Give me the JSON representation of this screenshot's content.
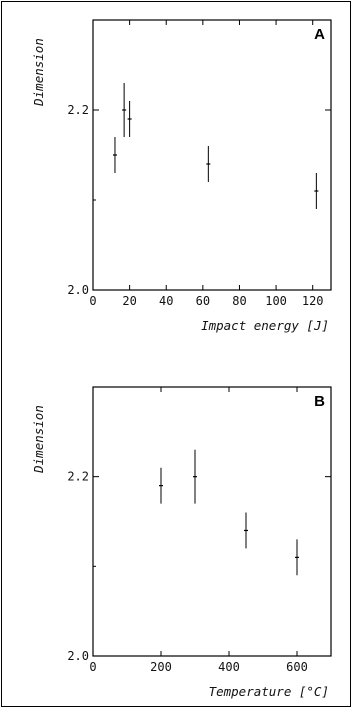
{
  "chart_data": [
    {
      "type": "scatter",
      "panel_label": "A",
      "xlabel": "Impact energy [J]",
      "ylabel": "Dimension",
      "xlim": [
        0,
        130
      ],
      "ylim": [
        2.0,
        2.3
      ],
      "x_ticks": [
        0,
        20,
        40,
        60,
        80,
        100,
        120
      ],
      "y_ticks": [
        2.0,
        2.2
      ],
      "y_tick_labels": [
        "2.0",
        "2.2"
      ],
      "x": [
        12,
        17,
        20,
        63,
        122
      ],
      "y": [
        2.15,
        2.2,
        2.19,
        2.14,
        2.11
      ],
      "yerr": [
        0.02,
        0.03,
        0.02,
        0.02,
        0.02
      ],
      "grid": false
    },
    {
      "type": "scatter",
      "panel_label": "B",
      "xlabel": "Temperature [°C]",
      "ylabel": "Dimension",
      "xlim": [
        0,
        700
      ],
      "ylim": [
        2.0,
        2.3
      ],
      "x_ticks": [
        0,
        200,
        400,
        600
      ],
      "y_ticks": [
        2.0,
        2.2
      ],
      "y_tick_labels": [
        "2.0",
        "2.2"
      ],
      "x": [
        200,
        300,
        450,
        600
      ],
      "y": [
        2.19,
        2.2,
        2.14,
        2.11
      ],
      "yerr": [
        0.02,
        0.03,
        0.02,
        0.02
      ],
      "grid": false
    }
  ]
}
